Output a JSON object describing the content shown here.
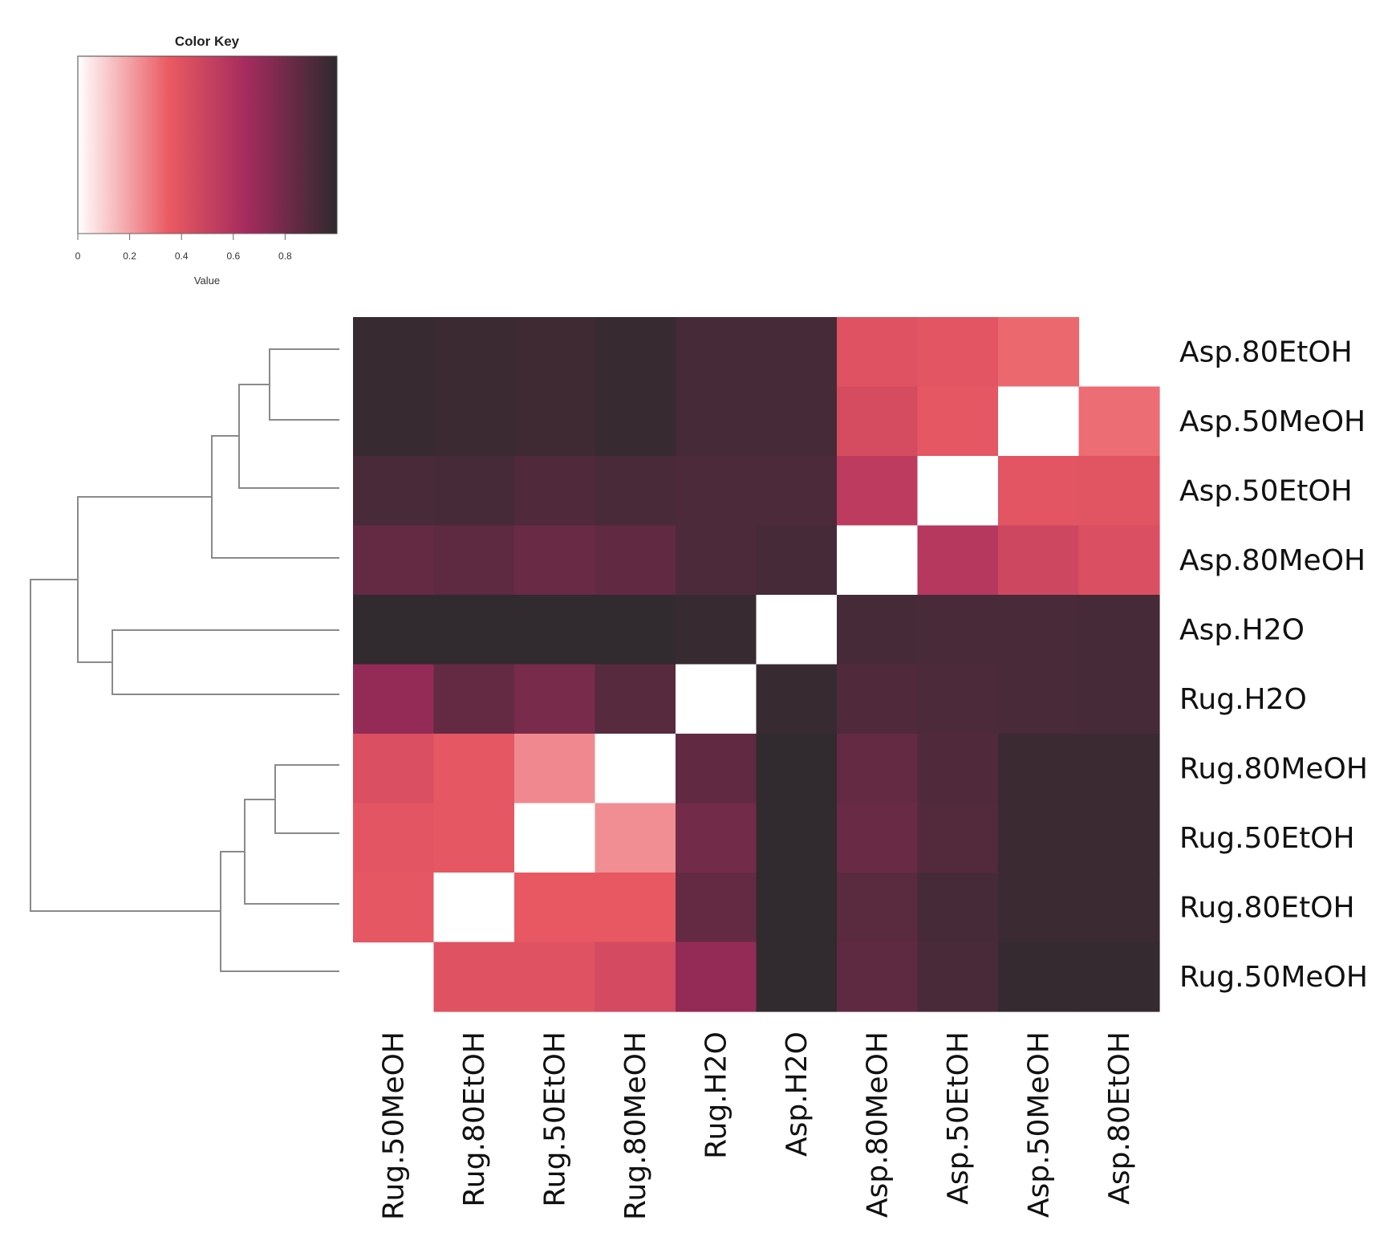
{
  "chart_data": {
    "type": "heatmap",
    "title": "",
    "color_key": {
      "title": "Color Key",
      "xlabel": "Value",
      "ticks": [
        "0",
        "0.2",
        "0.4",
        "0.6",
        "0.8"
      ],
      "range": [
        0,
        1
      ],
      "stops": [
        {
          "value": 0.0,
          "color": "#ffffff"
        },
        {
          "value": 0.35,
          "color": "#ea5a62"
        },
        {
          "value": 0.65,
          "color": "#a52b5e"
        },
        {
          "value": 1.0,
          "color": "#2e2a2d"
        }
      ]
    },
    "row_labels": [
      "Asp.80EtOH",
      "Asp.50MeOH",
      "Asp.50EtOH",
      "Asp.80MeOH",
      "Asp.H2O",
      "Rug.H2O",
      "Rug.80MeOH",
      "Rug.50EtOH",
      "Rug.80EtOH",
      "Rug.50MeOH"
    ],
    "col_labels": [
      "Rug.50MeOH",
      "Rug.80EtOH",
      "Rug.50EtOH",
      "Rug.80MeOH",
      "Rug.H2O",
      "Asp.H2O",
      "Asp.80MeOH",
      "Asp.50EtOH",
      "Asp.50MeOH",
      "Asp.80EtOH"
    ],
    "values": [
      [
        0.97,
        0.96,
        0.95,
        0.97,
        0.93,
        0.93,
        0.4,
        0.38,
        0.32,
        null
      ],
      [
        0.97,
        0.96,
        0.95,
        0.97,
        0.93,
        0.93,
        0.44,
        0.37,
        0.0,
        0.31
      ],
      [
        0.92,
        0.93,
        0.9,
        0.92,
        0.91,
        0.91,
        0.55,
        0.0,
        0.38,
        0.39
      ],
      [
        0.84,
        0.86,
        0.83,
        0.85,
        0.91,
        0.93,
        0.0,
        0.57,
        0.47,
        0.42
      ],
      [
        0.99,
        0.99,
        0.99,
        0.99,
        0.97,
        0.0,
        0.93,
        0.92,
        0.92,
        0.93
      ],
      [
        0.7,
        0.84,
        0.78,
        0.88,
        0.0,
        0.97,
        0.9,
        0.91,
        0.92,
        0.93
      ],
      [
        0.42,
        0.37,
        0.25,
        0.0,
        0.85,
        0.99,
        0.84,
        0.9,
        0.96,
        0.96
      ],
      [
        0.38,
        0.37,
        0.0,
        0.24,
        0.8,
        0.99,
        0.83,
        0.89,
        0.96,
        0.96
      ],
      [
        0.37,
        0.0,
        0.36,
        0.36,
        0.84,
        0.99,
        0.87,
        0.93,
        0.96,
        0.96
      ],
      [
        null,
        0.4,
        0.4,
        0.45,
        0.7,
        0.99,
        0.86,
        0.92,
        0.98,
        0.98
      ]
    ],
    "row_dendrogram": "((((Asp.80EtOH,Asp.50MeOH),Asp.50EtOH),Asp.80MeOH),(Asp.H2O,Rug.H2O)),(((Rug.80MeOH,Rug.50EtOH),Rug.80EtOH),Rug.50MeOH)"
  }
}
